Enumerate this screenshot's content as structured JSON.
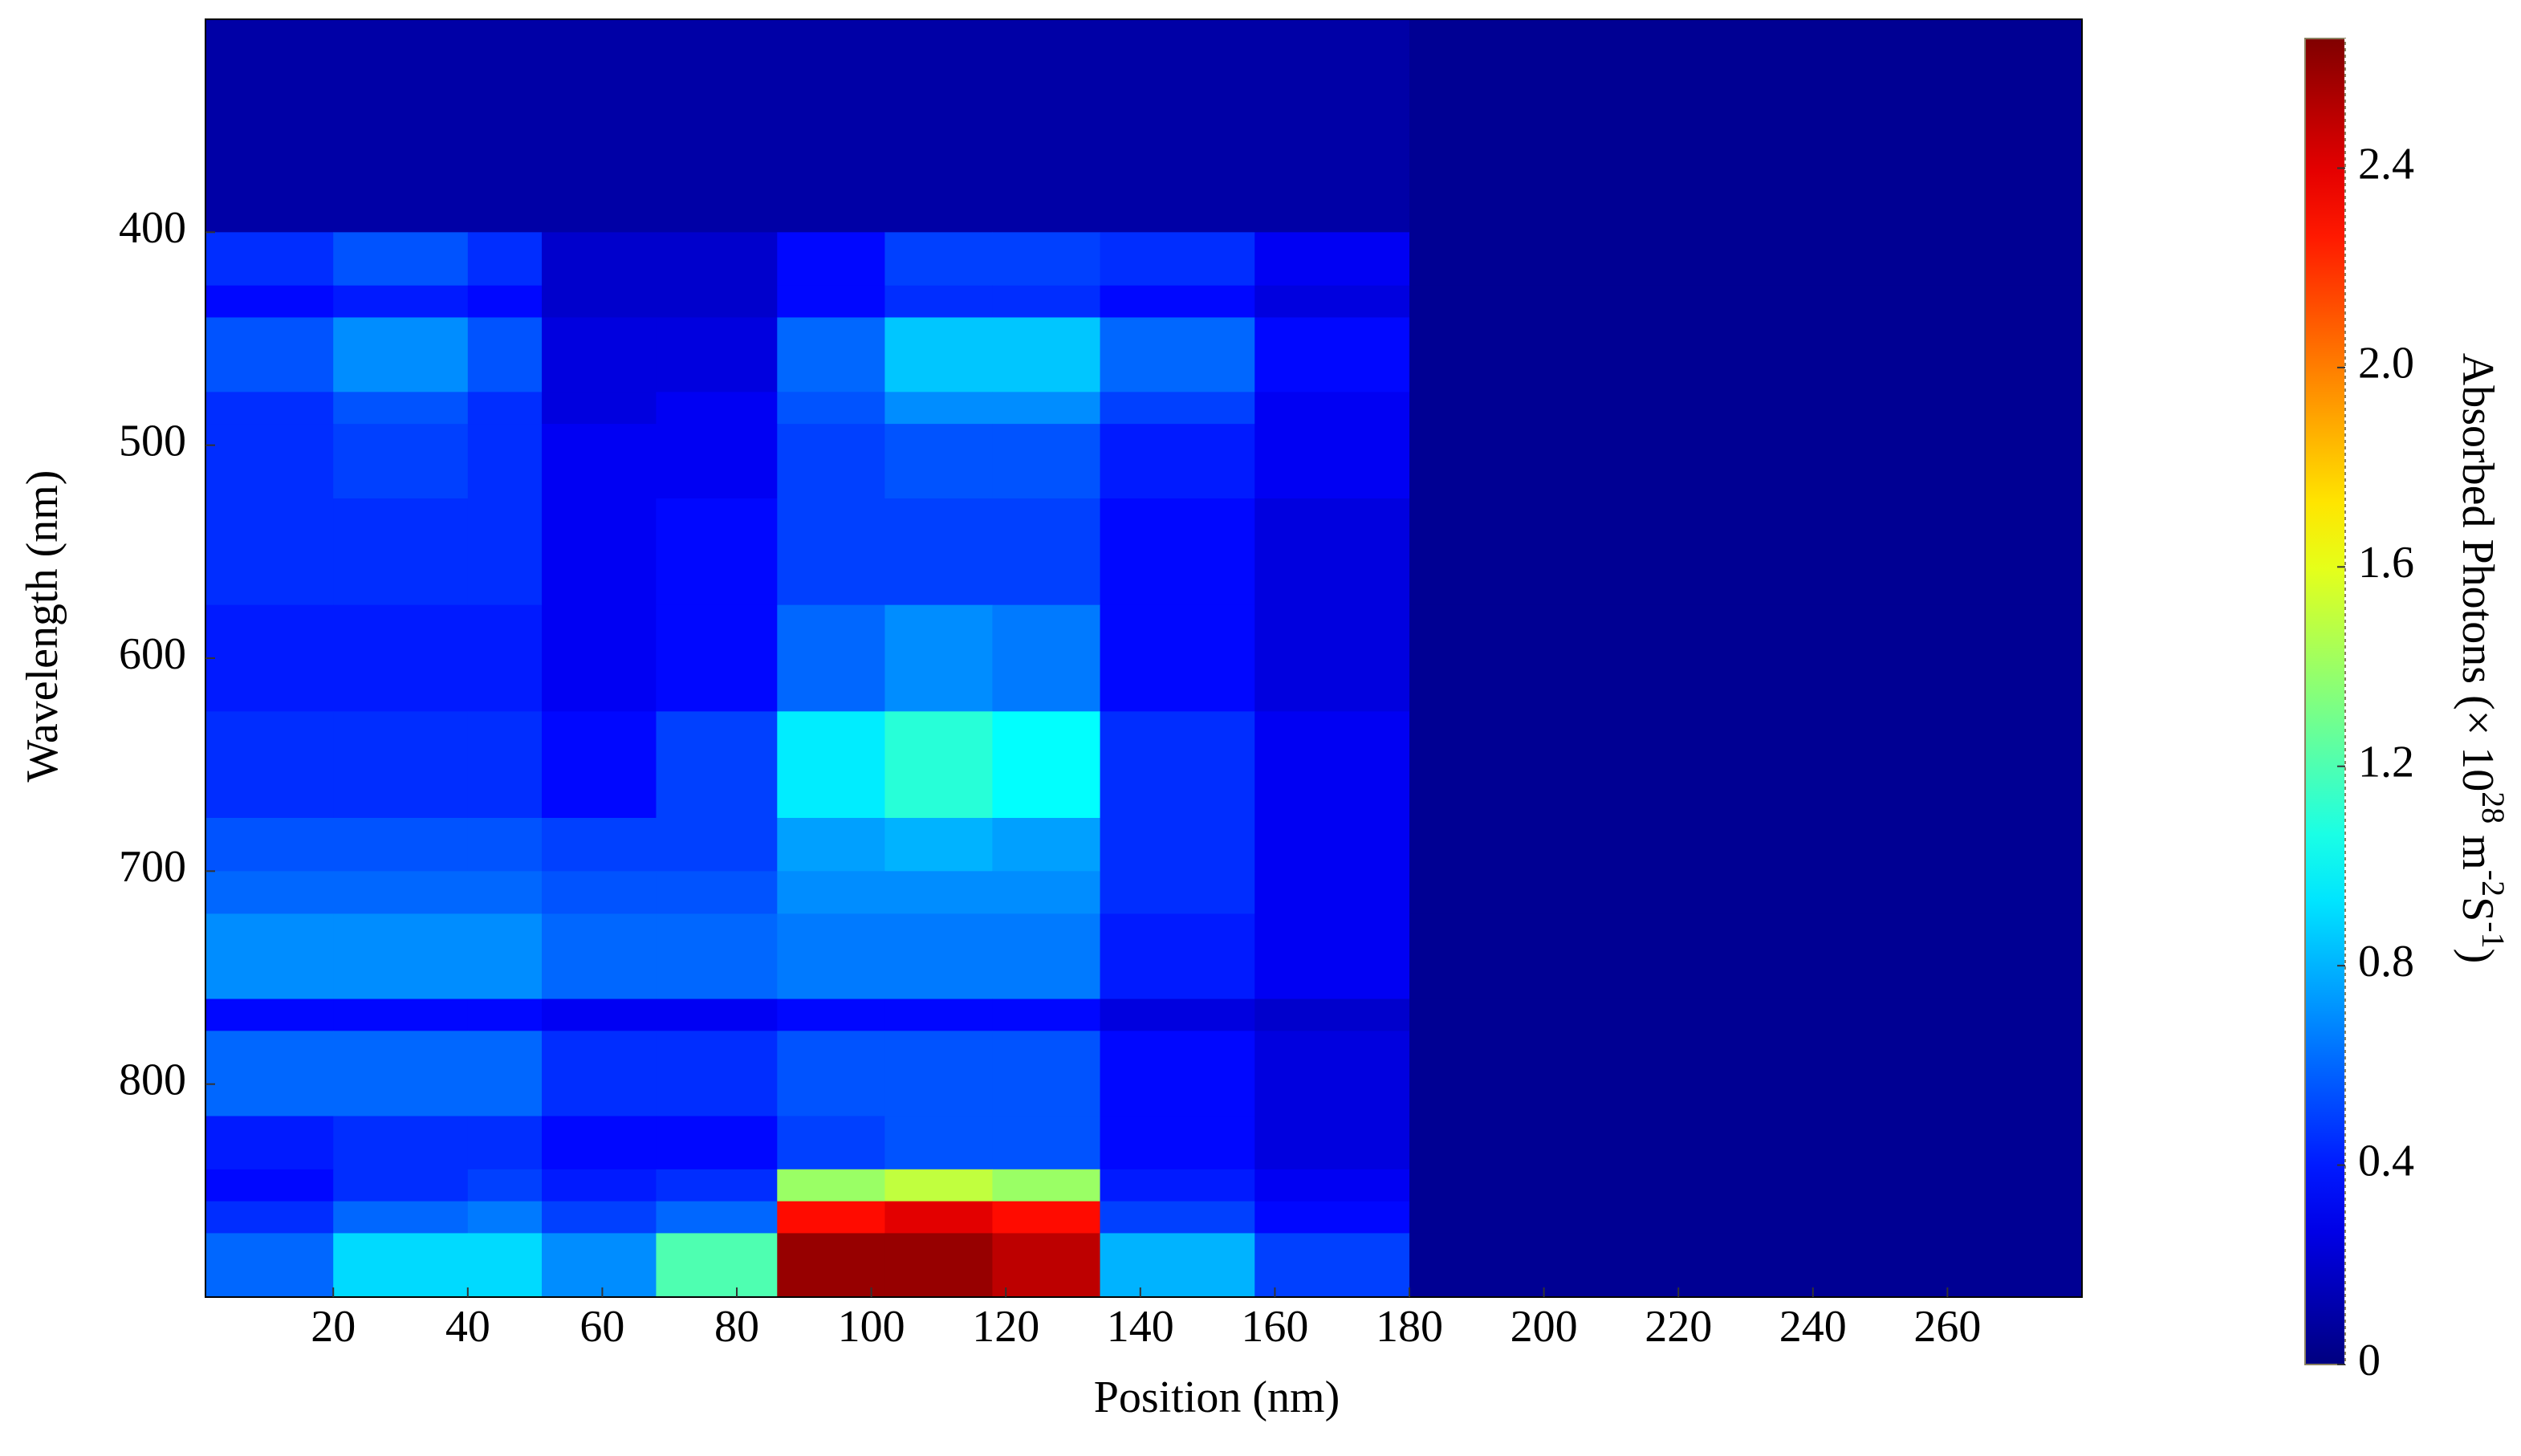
{
  "chart_data": {
    "type": "heatmap",
    "xlabel": "Position (nm)",
    "ylabel": "Wavelength (nm)",
    "colorbar_label": [
      "Absorbed Photons (× 10",
      "28",
      " m",
      "-2",
      "S",
      "-1",
      ")"
    ],
    "colormap": "jet",
    "xlim": [
      1,
      280
    ],
    "ylim": [
      300,
      900
    ],
    "clim": [
      0,
      2.66
    ],
    "xticks": [
      20,
      40,
      60,
      80,
      100,
      120,
      140,
      160,
      180,
      200,
      220,
      240,
      260
    ],
    "yticks": [
      400,
      500,
      600,
      700,
      800
    ],
    "cticks": [
      0,
      0.4,
      0.8,
      1.2,
      1.6,
      {
        "value": 2,
        "label": "2.0"
      },
      2.4
    ],
    "x_edges": [
      1,
      20,
      40,
      51,
      68,
      86,
      102,
      118,
      134,
      157,
      180,
      280
    ],
    "y_edges": [
      300,
      400,
      425,
      440,
      475,
      490,
      525,
      575,
      625,
      675,
      700,
      720,
      760,
      775,
      815,
      840,
      855,
      870,
      900
    ],
    "z": [
      [
        0.1,
        0.1,
        0.1,
        0.1,
        0.1,
        0.1,
        0.1,
        0.1,
        0.1,
        0.1,
        0.05
      ],
      [
        0.45,
        0.55,
        0.45,
        0.2,
        0.2,
        0.35,
        0.5,
        0.5,
        0.45,
        0.3,
        0.05
      ],
      [
        0.35,
        0.4,
        0.35,
        0.2,
        0.2,
        0.35,
        0.45,
        0.45,
        0.35,
        0.25,
        0.05
      ],
      [
        0.55,
        0.7,
        0.55,
        0.25,
        0.25,
        0.6,
        0.85,
        0.85,
        0.6,
        0.35,
        0.05
      ],
      [
        0.45,
        0.55,
        0.45,
        0.25,
        0.3,
        0.55,
        0.7,
        0.7,
        0.5,
        0.3,
        0.05
      ],
      [
        0.45,
        0.5,
        0.45,
        0.3,
        0.3,
        0.5,
        0.55,
        0.55,
        0.4,
        0.3,
        0.05
      ],
      [
        0.45,
        0.45,
        0.45,
        0.3,
        0.35,
        0.5,
        0.5,
        0.5,
        0.35,
        0.25,
        0.05
      ],
      [
        0.4,
        0.4,
        0.4,
        0.3,
        0.35,
        0.6,
        0.7,
        0.65,
        0.35,
        0.25,
        0.05
      ],
      [
        0.45,
        0.45,
        0.45,
        0.35,
        0.5,
        0.95,
        1.1,
        1.0,
        0.45,
        0.3,
        0.05
      ],
      [
        0.55,
        0.55,
        0.55,
        0.5,
        0.5,
        0.75,
        0.8,
        0.75,
        0.45,
        0.3,
        0.05
      ],
      [
        0.6,
        0.6,
        0.6,
        0.55,
        0.55,
        0.7,
        0.7,
        0.7,
        0.45,
        0.3,
        0.05
      ],
      [
        0.7,
        0.7,
        0.7,
        0.6,
        0.6,
        0.65,
        0.65,
        0.65,
        0.4,
        0.3,
        0.05
      ],
      [
        0.35,
        0.35,
        0.35,
        0.3,
        0.3,
        0.35,
        0.35,
        0.35,
        0.25,
        0.2,
        0.05
      ],
      [
        0.6,
        0.6,
        0.6,
        0.45,
        0.45,
        0.55,
        0.55,
        0.55,
        0.35,
        0.25,
        0.05
      ],
      [
        0.4,
        0.45,
        0.45,
        0.35,
        0.35,
        0.5,
        0.55,
        0.55,
        0.35,
        0.25,
        0.05
      ],
      [
        0.35,
        0.45,
        0.5,
        0.4,
        0.45,
        1.4,
        1.5,
        1.4,
        0.4,
        0.3,
        0.05
      ],
      [
        0.45,
        0.6,
        0.65,
        0.5,
        0.6,
        2.3,
        2.4,
        2.3,
        0.5,
        0.35,
        0.05
      ],
      [
        0.6,
        0.9,
        0.9,
        0.7,
        1.2,
        2.6,
        2.6,
        2.5,
        0.8,
        0.5,
        0.05
      ]
    ]
  }
}
